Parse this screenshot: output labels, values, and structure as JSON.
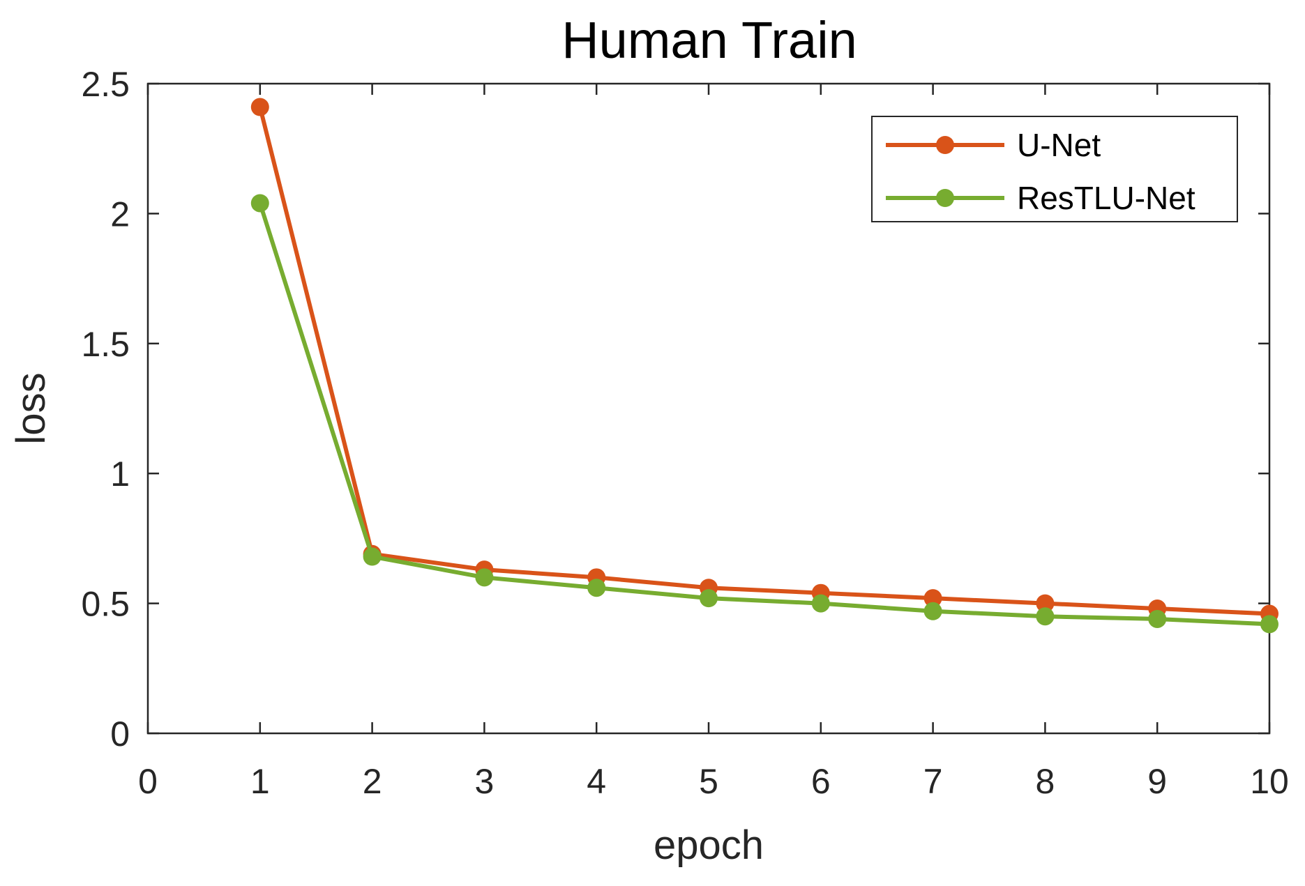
{
  "chart_data": {
    "type": "line",
    "title": "Human Train",
    "xlabel": "epoch",
    "ylabel": "loss",
    "xlim": [
      0,
      10
    ],
    "ylim": [
      0,
      2.5
    ],
    "xticks": [
      "0",
      "1",
      "2",
      "3",
      "4",
      "5",
      "6",
      "7",
      "8",
      "9",
      "10"
    ],
    "yticks": [
      "0",
      "0.5",
      "1",
      "1.5",
      "2",
      "2.5"
    ],
    "grid": false,
    "legend_position": "top-right",
    "x": [
      1,
      2,
      3,
      4,
      5,
      6,
      7,
      8,
      9,
      10
    ],
    "series": [
      {
        "name": "U-Net",
        "color": "#d95319",
        "values": [
          2.41,
          0.69,
          0.63,
          0.6,
          0.56,
          0.54,
          0.52,
          0.5,
          0.48,
          0.46
        ]
      },
      {
        "name": "ResTLU-Net",
        "color": "#77ac30",
        "values": [
          2.04,
          0.68,
          0.6,
          0.56,
          0.52,
          0.5,
          0.47,
          0.45,
          0.44,
          0.42
        ]
      }
    ]
  }
}
